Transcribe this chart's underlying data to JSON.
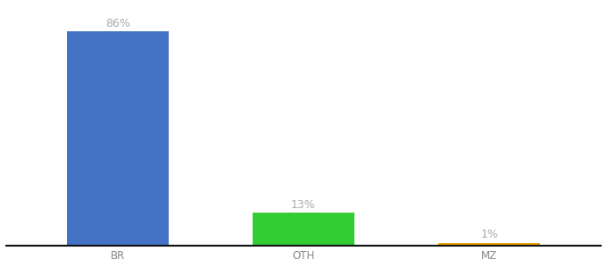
{
  "categories": [
    "BR",
    "OTH",
    "MZ"
  ],
  "values": [
    86,
    13,
    1
  ],
  "bar_colors": [
    "#4472c4",
    "#33cc33",
    "#f0a500"
  ],
  "labels": [
    "86%",
    "13%",
    "1%"
  ],
  "ylim": [
    0,
    96
  ],
  "background_color": "#ffffff",
  "label_color": "#aaaaaa",
  "label_fontsize": 9,
  "tick_fontsize": 8.5,
  "bar_width": 0.55
}
